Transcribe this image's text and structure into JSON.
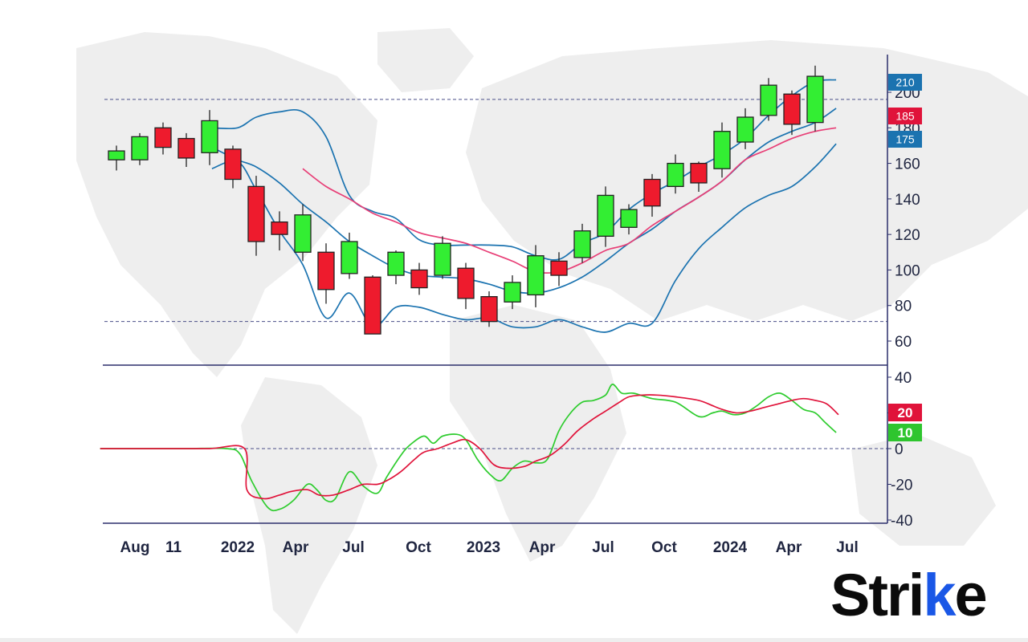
{
  "colors": {
    "up": "#33ee33",
    "down": "#ee1b2d",
    "band": "#1b73b0",
    "ma": "#e83e76",
    "axis": "#2b2f6b",
    "dash": "#4a4f88",
    "oscFast": "#2ecc2e",
    "oscSlow": "#e0133a",
    "badgeBlue": "#1b73b0",
    "badgeRed": "#e0133a",
    "badgeGreen": "#2ec52e",
    "map": "#eeeeee"
  },
  "logo": {
    "text_main": "Stri",
    "text_accent": "k",
    "text_tail": "e"
  },
  "chart_data": [
    {
      "type": "candlestick",
      "title": "",
      "x_ticks": [
        "Aug",
        "11",
        "2022",
        "Apr",
        "Jul",
        "Oct",
        "2023",
        "Apr",
        "Jul",
        "Oct",
        "2024",
        "Apr",
        "Jul"
      ],
      "y_ticks": [
        200,
        180,
        160,
        140,
        120,
        100,
        80,
        60
      ],
      "ylim": [
        47,
        218
      ],
      "reference_lines": [
        196,
        71
      ],
      "price_badges": [
        {
          "label": "210",
          "value": 210,
          "color": "blue"
        },
        {
          "label": "185",
          "value": 185,
          "color": "red"
        },
        {
          "label": "175",
          "value": 175,
          "color": "blue"
        }
      ],
      "candles": [
        {
          "o": 162,
          "h": 170,
          "l": 156,
          "c": 167
        },
        {
          "o": 162,
          "h": 177,
          "l": 159,
          "c": 175
        },
        {
          "o": 180,
          "h": 183,
          "l": 165,
          "c": 169
        },
        {
          "o": 174,
          "h": 177,
          "l": 158,
          "c": 163
        },
        {
          "o": 166,
          "h": 190,
          "l": 159,
          "c": 184
        },
        {
          "o": 168,
          "h": 170,
          "l": 146,
          "c": 151
        },
        {
          "o": 147,
          "h": 153,
          "l": 108,
          "c": 116
        },
        {
          "o": 127,
          "h": 133,
          "l": 111,
          "c": 120
        },
        {
          "o": 110,
          "h": 137,
          "l": 105,
          "c": 131
        },
        {
          "o": 110,
          "h": 115,
          "l": 81,
          "c": 89
        },
        {
          "o": 98,
          "h": 121,
          "l": 95,
          "c": 116
        },
        {
          "o": 96,
          "h": 97,
          "l": 64,
          "c": 64
        },
        {
          "o": 97,
          "h": 111,
          "l": 92,
          "c": 110
        },
        {
          "o": 100,
          "h": 104,
          "l": 86,
          "c": 90
        },
        {
          "o": 97,
          "h": 119,
          "l": 95,
          "c": 115
        },
        {
          "o": 101,
          "h": 104,
          "l": 78,
          "c": 84
        },
        {
          "o": 85,
          "h": 88,
          "l": 68,
          "c": 71
        },
        {
          "o": 82,
          "h": 97,
          "l": 78,
          "c": 93
        },
        {
          "o": 86,
          "h": 114,
          "l": 79,
          "c": 108
        },
        {
          "o": 105,
          "h": 110,
          "l": 91,
          "c": 97
        },
        {
          "o": 107,
          "h": 126,
          "l": 104,
          "c": 122
        },
        {
          "o": 119,
          "h": 147,
          "l": 113,
          "c": 142
        },
        {
          "o": 124,
          "h": 137,
          "l": 120,
          "c": 134
        },
        {
          "o": 151,
          "h": 154,
          "l": 130,
          "c": 136
        },
        {
          "o": 147,
          "h": 165,
          "l": 143,
          "c": 160
        },
        {
          "o": 160,
          "h": 161,
          "l": 144,
          "c": 149
        },
        {
          "o": 157,
          "h": 183,
          "l": 152,
          "c": 178
        },
        {
          "o": 172,
          "h": 191,
          "l": 168,
          "c": 186
        },
        {
          "o": 187,
          "h": 208,
          "l": 184,
          "c": 204
        },
        {
          "o": 199,
          "h": 201,
          "l": 176,
          "c": 182
        },
        {
          "o": 183,
          "h": 215,
          "l": 178,
          "c": 209
        }
      ],
      "upper_band": [
        [
          4.1,
          180
        ],
        [
          5.2,
          180
        ],
        [
          6,
          186
        ],
        [
          7,
          189
        ],
        [
          8,
          189
        ],
        [
          9,
          175
        ],
        [
          10,
          142
        ],
        [
          11,
          133
        ],
        [
          12,
          129
        ],
        [
          13,
          117
        ],
        [
          14,
          114
        ],
        [
          15,
          114
        ],
        [
          16,
          114
        ],
        [
          17,
          113
        ],
        [
          18,
          108
        ],
        [
          19,
          106
        ],
        [
          20,
          115
        ],
        [
          21,
          121
        ],
        [
          22,
          134
        ],
        [
          23,
          143
        ],
        [
          24,
          150
        ],
        [
          25,
          158
        ],
        [
          26,
          165
        ],
        [
          27,
          174
        ],
        [
          28,
          187
        ],
        [
          29,
          198
        ],
        [
          30,
          206
        ],
        [
          30.9,
          207
        ]
      ],
      "middle_band": [
        [
          4.1,
          169
        ],
        [
          5.2,
          162
        ],
        [
          6,
          158
        ],
        [
          7,
          149
        ],
        [
          8,
          137
        ],
        [
          9,
          127
        ],
        [
          10,
          116
        ],
        [
          11,
          108
        ],
        [
          12,
          101
        ],
        [
          13,
          97
        ],
        [
          14,
          96
        ],
        [
          15,
          95
        ],
        [
          16,
          92
        ],
        [
          17,
          88
        ],
        [
          18,
          87
        ],
        [
          19,
          90
        ],
        [
          20,
          96
        ],
        [
          21,
          105
        ],
        [
          22,
          115
        ],
        [
          23,
          123
        ],
        [
          24,
          133
        ],
        [
          25,
          141
        ],
        [
          26,
          150
        ],
        [
          27,
          162
        ],
        [
          28,
          172
        ],
        [
          29,
          178
        ],
        [
          30,
          183
        ],
        [
          30.9,
          191
        ]
      ],
      "lower_band": [
        [
          4.1,
          157
        ],
        [
          5.2,
          161
        ],
        [
          6,
          145
        ],
        [
          7,
          122
        ],
        [
          8,
          103
        ],
        [
          9,
          73
        ],
        [
          10,
          87
        ],
        [
          11,
          68
        ],
        [
          12,
          79
        ],
        [
          13,
          79
        ],
        [
          14,
          75
        ],
        [
          15,
          72
        ],
        [
          16,
          73
        ],
        [
          17,
          68
        ],
        [
          18,
          68
        ],
        [
          19,
          72
        ],
        [
          20,
          68
        ],
        [
          21,
          65
        ],
        [
          22,
          70
        ],
        [
          23,
          70
        ],
        [
          24,
          94
        ],
        [
          25,
          112
        ],
        [
          26,
          124
        ],
        [
          27,
          135
        ],
        [
          28,
          142
        ],
        [
          29,
          147
        ],
        [
          30,
          158
        ],
        [
          30.9,
          171
        ]
      ],
      "moving_average": [
        [
          8,
          157
        ],
        [
          9,
          147
        ],
        [
          10,
          140
        ],
        [
          11,
          132
        ],
        [
          12,
          127
        ],
        [
          13,
          121
        ],
        [
          14,
          118
        ],
        [
          15,
          115
        ],
        [
          16,
          110
        ],
        [
          17,
          105
        ],
        [
          18,
          99
        ],
        [
          19,
          99
        ],
        [
          20,
          104
        ],
        [
          21,
          111
        ],
        [
          22,
          115
        ],
        [
          23,
          125
        ],
        [
          24,
          133
        ],
        [
          25,
          141
        ],
        [
          26,
          150
        ],
        [
          27,
          162
        ],
        [
          28,
          168
        ],
        [
          29,
          174
        ],
        [
          30,
          178
        ],
        [
          30.9,
          180
        ]
      ]
    },
    {
      "type": "line",
      "title": "",
      "y_ticks": [
        40,
        20,
        0,
        -20,
        -40
      ],
      "ylim": [
        -45,
        46
      ],
      "zero_line": 0,
      "badges": [
        {
          "label": "20",
          "value": 20,
          "color": "red"
        },
        {
          "label": "10",
          "value": 10,
          "color": "green"
        }
      ],
      "series": [
        {
          "name": "fast",
          "points": [
            [
              -0.7,
              0
            ],
            [
              1,
              0
            ],
            [
              3,
              0
            ],
            [
              4.7,
              0
            ],
            [
              5.3,
              -3
            ],
            [
              5.8,
              -18
            ],
            [
              6.5,
              -33
            ],
            [
              7,
              -34
            ],
            [
              7.6,
              -29
            ],
            [
              8.2,
              -20
            ],
            [
              8.6,
              -23
            ],
            [
              9,
              -29
            ],
            [
              9.4,
              -28
            ],
            [
              10,
              -13
            ],
            [
              10.6,
              -21
            ],
            [
              11.2,
              -25
            ],
            [
              11.6,
              -16
            ],
            [
              12.2,
              -4
            ],
            [
              12.6,
              2
            ],
            [
              13.2,
              7
            ],
            [
              13.6,
              3
            ],
            [
              14,
              7
            ],
            [
              14.6,
              8
            ],
            [
              15,
              5
            ],
            [
              15.5,
              -6
            ],
            [
              16,
              -14
            ],
            [
              16.5,
              -18
            ],
            [
              17,
              -11
            ],
            [
              17.5,
              -7
            ],
            [
              18,
              -8
            ],
            [
              18.5,
              -6
            ],
            [
              19,
              10
            ],
            [
              19.5,
              20
            ],
            [
              20,
              26
            ],
            [
              20.5,
              27
            ],
            [
              21,
              30
            ],
            [
              21.3,
              36
            ],
            [
              21.7,
              31
            ],
            [
              22.2,
              31
            ],
            [
              23,
              28
            ],
            [
              24,
              26
            ],
            [
              25,
              18
            ],
            [
              25.6,
              20
            ],
            [
              26,
              21
            ],
            [
              26.5,
              19
            ],
            [
              27,
              20
            ],
            [
              27.5,
              24
            ],
            [
              28,
              29
            ],
            [
              28.5,
              31
            ],
            [
              29,
              27
            ],
            [
              29.5,
              22
            ],
            [
              30,
              20
            ],
            [
              30.4,
              15
            ],
            [
              30.9,
              9
            ]
          ]
        },
        {
          "name": "slow",
          "points": [
            [
              -0.7,
              0
            ],
            [
              2,
              0
            ],
            [
              4,
              0
            ],
            [
              5.5,
              0
            ],
            [
              5.6,
              -23
            ],
            [
              6.3,
              -28
            ],
            [
              7,
              -26
            ],
            [
              7.5,
              -24
            ],
            [
              8.2,
              -23
            ],
            [
              8.7,
              -26
            ],
            [
              9.3,
              -26
            ],
            [
              10,
              -23
            ],
            [
              10.6,
              -20
            ],
            [
              11.2,
              -20
            ],
            [
              11.6,
              -18
            ],
            [
              12.2,
              -13
            ],
            [
              12.8,
              -6
            ],
            [
              13.2,
              -2
            ],
            [
              13.8,
              0
            ],
            [
              14.4,
              3
            ],
            [
              15,
              5
            ],
            [
              15.6,
              0
            ],
            [
              16.2,
              -9
            ],
            [
              16.8,
              -11
            ],
            [
              17.5,
              -10
            ],
            [
              18,
              -7
            ],
            [
              18.6,
              -4
            ],
            [
              19.2,
              2
            ],
            [
              19.8,
              10
            ],
            [
              20.4,
              16
            ],
            [
              21,
              21
            ],
            [
              21.6,
              26
            ],
            [
              22,
              29
            ],
            [
              22.6,
              30
            ],
            [
              23.2,
              30
            ],
            [
              24,
              29
            ],
            [
              25,
              27
            ],
            [
              25.6,
              24
            ],
            [
              26,
              22
            ],
            [
              26.6,
              20
            ],
            [
              27.2,
              21
            ],
            [
              27.8,
              23
            ],
            [
              28.4,
              25
            ],
            [
              29,
              27
            ],
            [
              29.5,
              28
            ],
            [
              30,
              27
            ],
            [
              30.5,
              25
            ],
            [
              31,
              19
            ]
          ]
        }
      ]
    }
  ]
}
